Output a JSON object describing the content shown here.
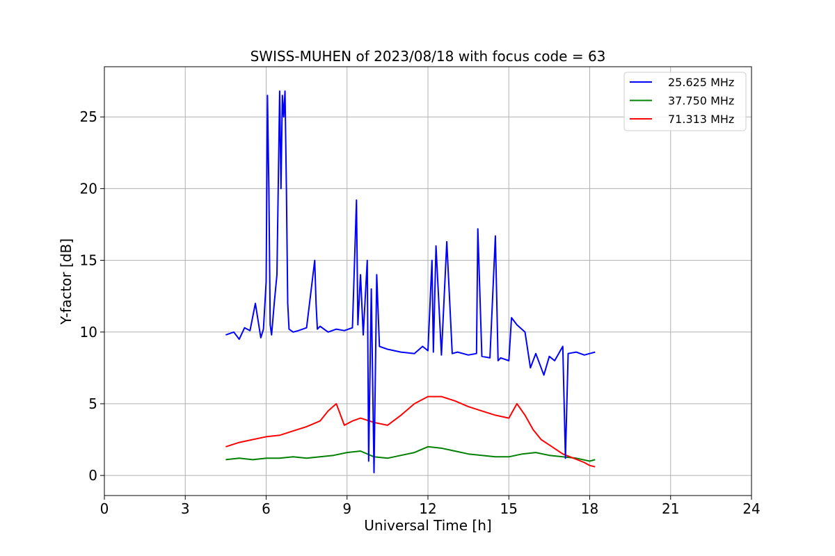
{
  "chart_data": {
    "type": "line",
    "title": "SWISS-MUHEN of 2023/08/18 with focus code = 63",
    "xlabel": "Universal Time [h]",
    "ylabel": "Y-factor [dB]",
    "xlim": [
      0,
      24
    ],
    "ylim": [
      -1.4,
      28.5
    ],
    "xticks": [
      0,
      3,
      6,
      9,
      12,
      15,
      18,
      21,
      24
    ],
    "xtick_labels": [
      "0",
      "3",
      "6",
      "9",
      "12",
      "15",
      "18",
      "21",
      "24"
    ],
    "yticks": [
      0,
      5,
      10,
      15,
      20,
      25
    ],
    "ytick_labels": [
      "0",
      "5",
      "10",
      "15",
      "20",
      "25"
    ],
    "grid": true,
    "legend_position": "top-right",
    "series": [
      {
        "name": "25.625 MHz",
        "color": "#0000ff",
        "x": [
          4.5,
          4.8,
          5.0,
          5.2,
          5.4,
          5.6,
          5.8,
          5.9,
          6.0,
          6.05,
          6.1,
          6.15,
          6.2,
          6.3,
          6.4,
          6.5,
          6.55,
          6.6,
          6.65,
          6.7,
          6.75,
          6.8,
          6.85,
          7.0,
          7.2,
          7.5,
          7.8,
          7.85,
          7.9,
          8.0,
          8.3,
          8.6,
          8.9,
          9.2,
          9.35,
          9.4,
          9.5,
          9.6,
          9.75,
          9.8,
          9.9,
          10.0,
          10.1,
          10.2,
          10.5,
          11.0,
          11.5,
          11.8,
          12.0,
          12.15,
          12.2,
          12.3,
          12.5,
          12.7,
          12.9,
          13.1,
          13.5,
          13.8,
          13.85,
          14.0,
          14.3,
          14.5,
          14.6,
          14.7,
          15.0,
          15.1,
          15.3,
          15.6,
          15.8,
          16.0,
          16.3,
          16.5,
          16.7,
          17.0,
          17.1,
          17.2,
          17.5,
          17.8,
          18.0,
          18.2
        ],
        "y": [
          9.8,
          10.0,
          9.5,
          10.3,
          10.1,
          12.0,
          9.6,
          10.2,
          13.5,
          26.5,
          20.0,
          10.5,
          9.8,
          12.0,
          14.0,
          26.8,
          20.0,
          26.5,
          25.0,
          26.8,
          20.0,
          12.0,
          10.2,
          10.0,
          10.1,
          10.3,
          15.0,
          12.0,
          10.2,
          10.4,
          10.0,
          10.2,
          10.1,
          10.3,
          19.2,
          10.5,
          14.0,
          9.8,
          15.0,
          1.0,
          13.0,
          0.2,
          14.0,
          9.0,
          8.8,
          8.6,
          8.5,
          9.0,
          8.7,
          15.0,
          8.6,
          16.0,
          8.4,
          16.3,
          8.5,
          8.6,
          8.4,
          8.5,
          17.2,
          8.3,
          8.2,
          16.7,
          8.0,
          8.2,
          8.0,
          11.0,
          10.5,
          10.0,
          7.5,
          8.5,
          7.0,
          8.3,
          8.0,
          9.0,
          1.2,
          8.5,
          8.6,
          8.4,
          8.5,
          8.6
        ]
      },
      {
        "name": "37.750 MHz",
        "color": "#008000",
        "x": [
          4.5,
          5.0,
          5.5,
          6.0,
          6.5,
          7.0,
          7.5,
          8.0,
          8.5,
          9.0,
          9.5,
          10.0,
          10.5,
          11.0,
          11.5,
          12.0,
          12.5,
          13.0,
          13.5,
          14.0,
          14.5,
          15.0,
          15.5,
          16.0,
          16.5,
          17.0,
          17.5,
          18.0,
          18.2
        ],
        "y": [
          1.1,
          1.2,
          1.1,
          1.2,
          1.2,
          1.3,
          1.2,
          1.3,
          1.4,
          1.6,
          1.7,
          1.3,
          1.2,
          1.4,
          1.6,
          2.0,
          1.9,
          1.7,
          1.5,
          1.4,
          1.3,
          1.3,
          1.5,
          1.6,
          1.4,
          1.3,
          1.2,
          1.0,
          1.1
        ]
      },
      {
        "name": "71.313 MHz",
        "color": "#ff0000",
        "x": [
          4.5,
          5.0,
          5.5,
          6.0,
          6.5,
          7.0,
          7.5,
          8.0,
          8.3,
          8.6,
          8.9,
          9.2,
          9.5,
          10.0,
          10.5,
          11.0,
          11.5,
          12.0,
          12.5,
          13.0,
          13.5,
          14.0,
          14.5,
          15.0,
          15.3,
          15.6,
          15.9,
          16.2,
          16.6,
          17.0,
          17.4,
          17.8,
          18.0,
          18.2
        ],
        "y": [
          2.0,
          2.3,
          2.5,
          2.7,
          2.8,
          3.1,
          3.4,
          3.8,
          4.5,
          5.0,
          3.5,
          3.8,
          4.0,
          3.7,
          3.5,
          4.2,
          5.0,
          5.5,
          5.5,
          5.2,
          4.8,
          4.5,
          4.2,
          4.0,
          5.0,
          4.2,
          3.2,
          2.5,
          2.0,
          1.5,
          1.2,
          0.9,
          0.7,
          0.6
        ]
      }
    ]
  }
}
